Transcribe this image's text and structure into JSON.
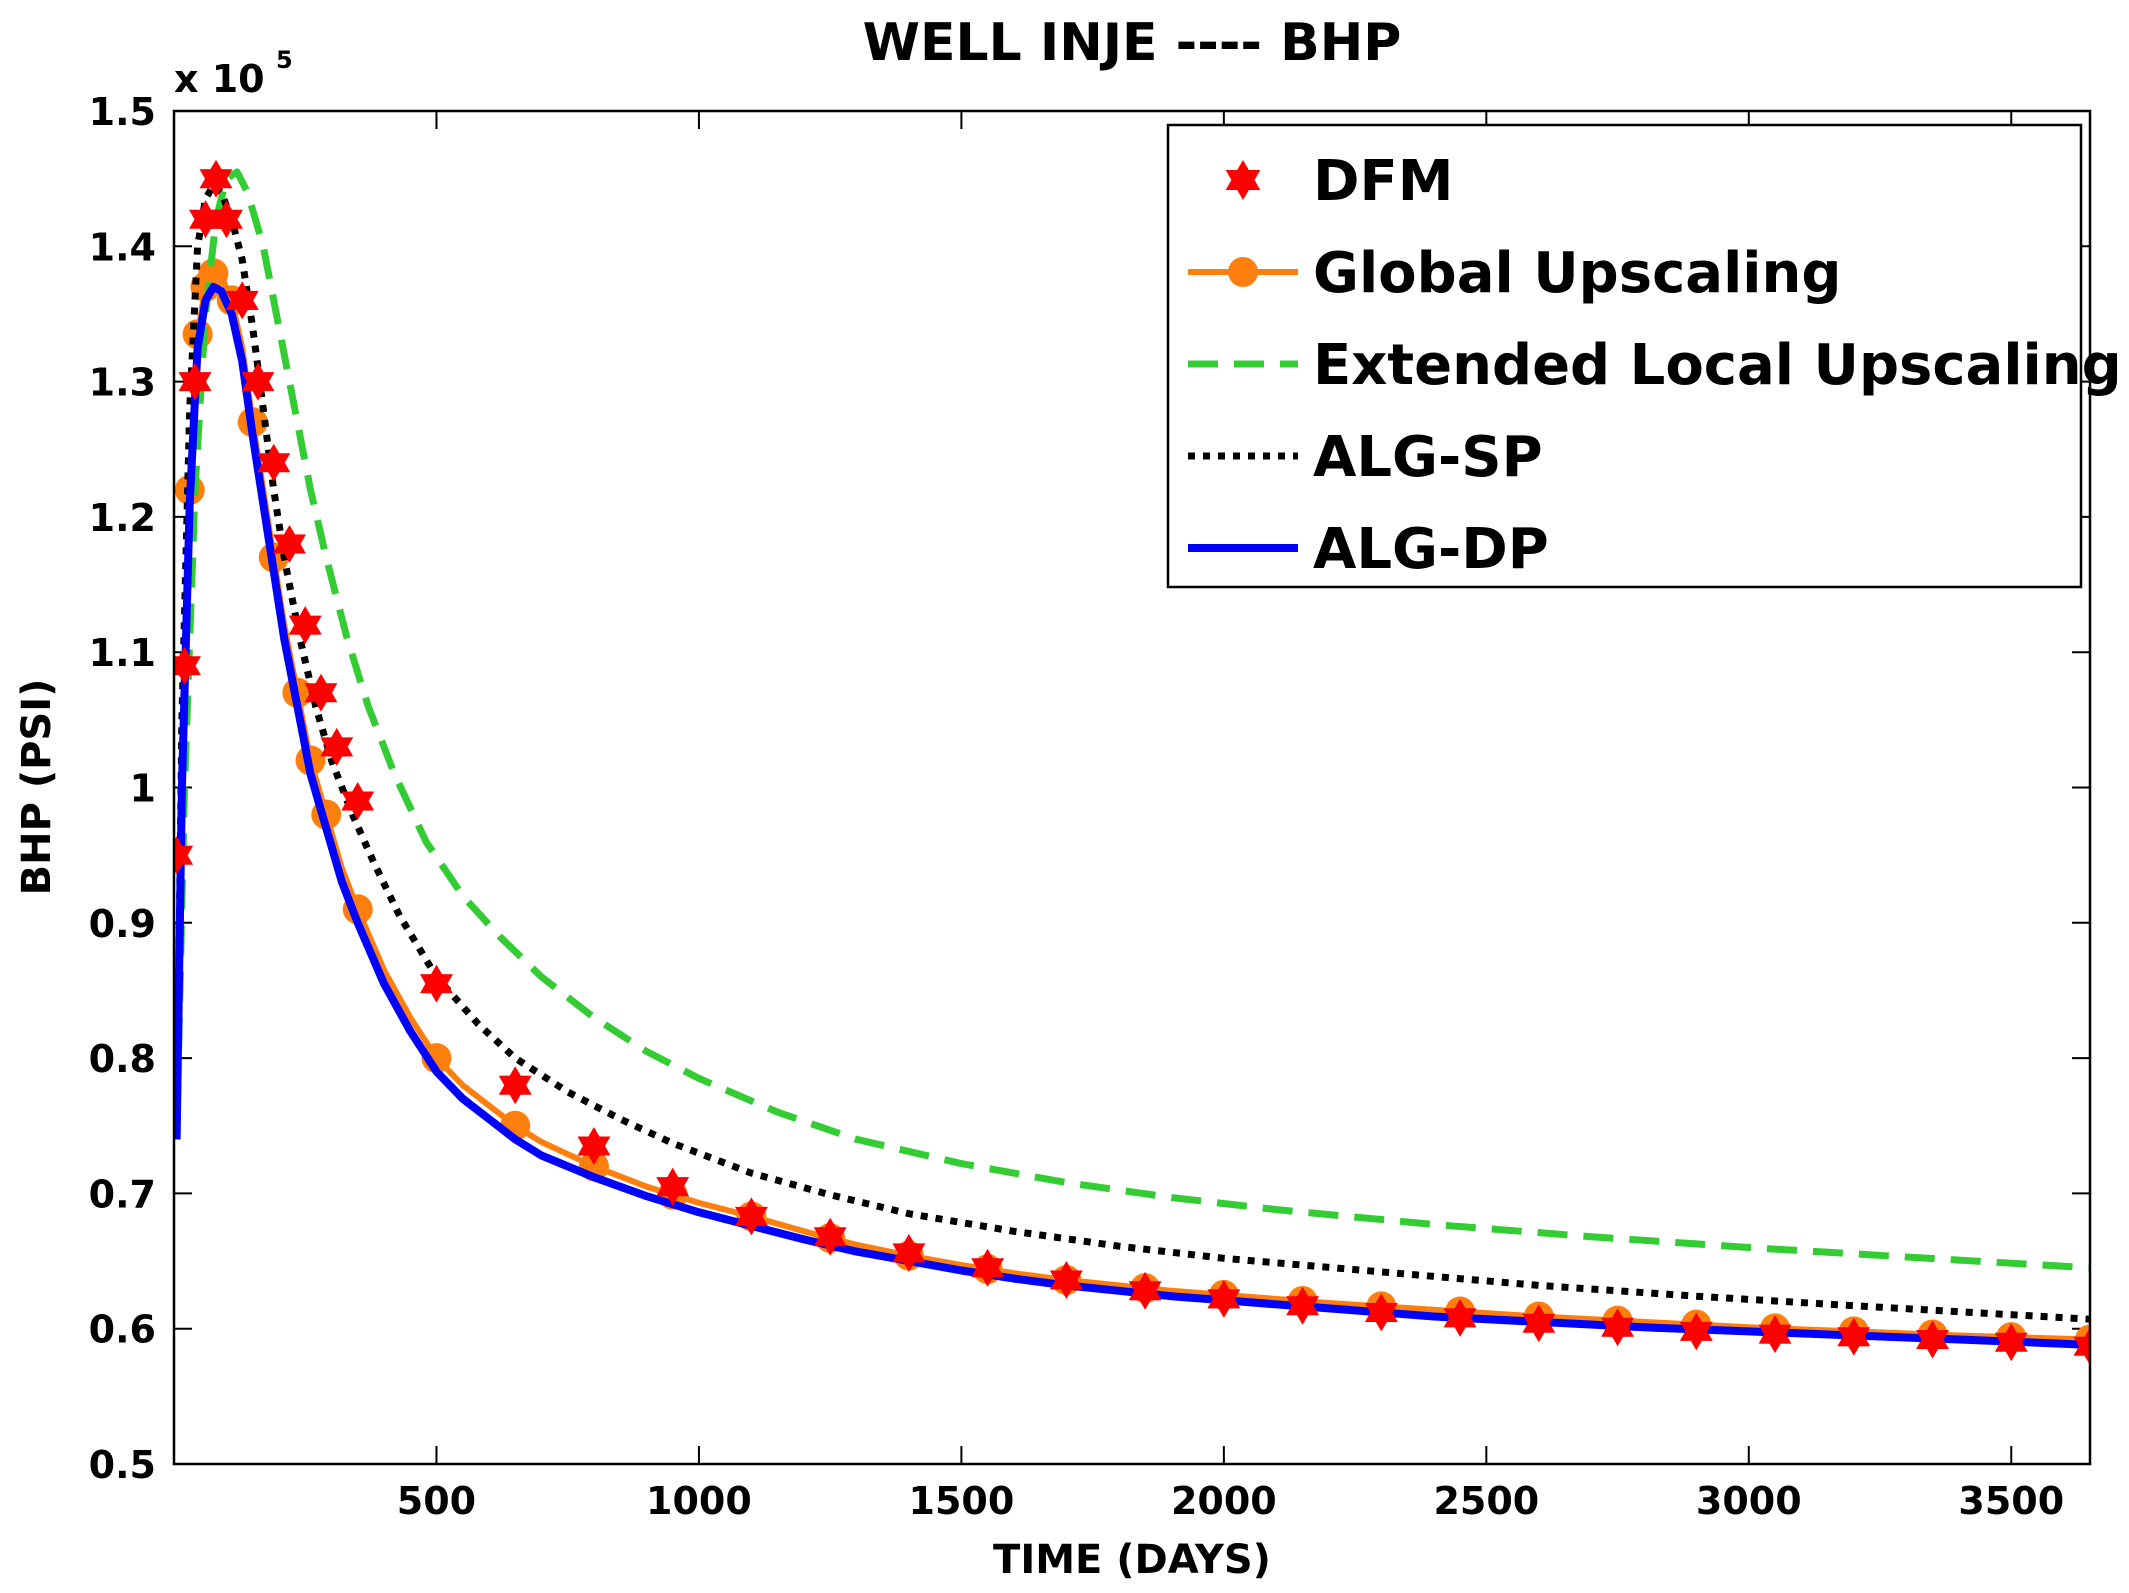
{
  "chart_data": {
    "type": "line",
    "title": "WELL INJE ---- BHP",
    "xlabel": "TIME (DAYS)",
    "ylabel": "BHP (PSI)",
    "y_scale_label": "x 10",
    "y_scale_exponent": "5",
    "xlim": [
      0,
      3650
    ],
    "ylim": [
      0.5,
      1.5
    ],
    "xticks": [
      500,
      1000,
      1500,
      2000,
      2500,
      3000,
      3500
    ],
    "xtick_labels": [
      "500",
      "1000",
      "1500",
      "2000",
      "2500",
      "3000",
      "3500"
    ],
    "yticks": [
      0.5,
      0.6,
      0.7,
      0.8,
      0.9,
      1.0,
      1.1,
      1.2,
      1.3,
      1.4,
      1.5
    ],
    "ytick_labels": [
      "0.5",
      "0.6",
      "0.7",
      "0.8",
      "0.9",
      "1",
      "1.1",
      "1.2",
      "1.3",
      "1.4",
      "1.5"
    ],
    "legend_position": "top-right",
    "series": [
      {
        "name": "DFM",
        "style": "markers-star",
        "color": "#ff0000",
        "x": [
          5,
          20,
          40,
          60,
          80,
          100,
          130,
          160,
          190,
          220,
          250,
          280,
          310,
          350,
          500,
          650,
          800,
          950,
          1100,
          1250,
          1400,
          1550,
          1700,
          1850,
          2000,
          2150,
          2300,
          2450,
          2600,
          2750,
          2900,
          3050,
          3200,
          3350,
          3500,
          3650
        ],
        "y": [
          0.95,
          1.09,
          1.3,
          1.42,
          1.45,
          1.42,
          1.36,
          1.3,
          1.24,
          1.18,
          1.12,
          1.07,
          1.03,
          0.99,
          0.855,
          0.78,
          0.735,
          0.705,
          0.683,
          0.668,
          0.656,
          0.645,
          0.636,
          0.628,
          0.622,
          0.617,
          0.612,
          0.608,
          0.604,
          0.601,
          0.598,
          0.596,
          0.594,
          0.592,
          0.59,
          0.587
        ]
      },
      {
        "name": "Global Upscaling",
        "style": "solid-circles",
        "color": "#ff7f0e",
        "x": [
          5,
          15,
          30,
          45,
          60,
          75,
          90,
          110,
          130,
          150,
          170,
          190,
          210,
          235,
          260,
          290,
          320,
          350,
          400,
          450,
          500,
          550,
          600,
          650,
          700,
          800,
          900,
          1000,
          1100,
          1200,
          1300,
          1400,
          1500,
          1600,
          1700,
          1800,
          1900,
          2000,
          2200,
          2400,
          2600,
          2800,
          3000,
          3200,
          3400,
          3650
        ],
        "y": [
          0.74,
          1.005,
          1.22,
          1.335,
          1.37,
          1.38,
          1.378,
          1.36,
          1.325,
          1.27,
          1.22,
          1.17,
          1.12,
          1.07,
          1.02,
          0.98,
          0.94,
          0.91,
          0.865,
          0.83,
          0.8,
          0.78,
          0.765,
          0.75,
          0.738,
          0.72,
          0.705,
          0.693,
          0.683,
          0.672,
          0.662,
          0.654,
          0.647,
          0.641,
          0.636,
          0.632,
          0.628,
          0.625,
          0.619,
          0.614,
          0.609,
          0.605,
          0.601,
          0.598,
          0.595,
          0.592
        ]
      },
      {
        "name": "Extended Local Upscaling",
        "style": "dashed",
        "color": "#33cc33",
        "x": [
          5,
          20,
          40,
          60,
          80,
          100,
          120,
          140,
          170,
          200,
          230,
          260,
          290,
          330,
          370,
          420,
          480,
          550,
          620,
          700,
          800,
          900,
          1000,
          1150,
          1300,
          1500,
          1700,
          1900,
          2100,
          2400,
          2700,
          3000,
          3300,
          3650
        ],
        "y": [
          0.74,
          1.0,
          1.22,
          1.35,
          1.42,
          1.45,
          1.455,
          1.44,
          1.4,
          1.34,
          1.28,
          1.22,
          1.17,
          1.11,
          1.06,
          1.01,
          0.96,
          0.92,
          0.89,
          0.86,
          0.83,
          0.805,
          0.785,
          0.76,
          0.74,
          0.722,
          0.708,
          0.697,
          0.688,
          0.677,
          0.668,
          0.66,
          0.653,
          0.645
        ]
      },
      {
        "name": "ALG-SP",
        "style": "dotted",
        "color": "#000000",
        "x": [
          5,
          15,
          30,
          45,
          60,
          75,
          90,
          110,
          130,
          150,
          170,
          190,
          210,
          240,
          270,
          300,
          340,
          380,
          430,
          500,
          580,
          650,
          750,
          850,
          950,
          1100,
          1250,
          1400,
          1600,
          1800,
          2000,
          2300,
          2600,
          2900,
          3200,
          3650
        ],
        "y": [
          0.74,
          1.05,
          1.28,
          1.4,
          1.435,
          1.445,
          1.44,
          1.42,
          1.39,
          1.34,
          1.28,
          1.22,
          1.17,
          1.11,
          1.06,
          1.02,
          0.98,
          0.945,
          0.905,
          0.86,
          0.825,
          0.8,
          0.775,
          0.755,
          0.737,
          0.715,
          0.699,
          0.685,
          0.672,
          0.661,
          0.652,
          0.642,
          0.632,
          0.624,
          0.617,
          0.607
        ]
      },
      {
        "name": "ALG-DP",
        "style": "solid",
        "color": "#0000ff",
        "x": [
          5,
          15,
          30,
          45,
          60,
          75,
          90,
          110,
          130,
          150,
          170,
          190,
          210,
          235,
          260,
          290,
          320,
          350,
          400,
          450,
          500,
          550,
          600,
          650,
          700,
          800,
          900,
          1000,
          1100,
          1200,
          1300,
          1400,
          1500,
          1600,
          1700,
          1800,
          1900,
          2000,
          2200,
          2400,
          2600,
          2800,
          3000,
          3200,
          3400,
          3650
        ],
        "y": [
          0.74,
          1.0,
          1.21,
          1.325,
          1.36,
          1.37,
          1.367,
          1.35,
          1.315,
          1.26,
          1.21,
          1.16,
          1.11,
          1.06,
          1.01,
          0.97,
          0.93,
          0.9,
          0.855,
          0.82,
          0.79,
          0.77,
          0.755,
          0.74,
          0.728,
          0.712,
          0.698,
          0.686,
          0.676,
          0.666,
          0.657,
          0.65,
          0.643,
          0.637,
          0.632,
          0.628,
          0.624,
          0.621,
          0.615,
          0.609,
          0.605,
          0.601,
          0.598,
          0.595,
          0.592,
          0.588
        ]
      }
    ]
  }
}
